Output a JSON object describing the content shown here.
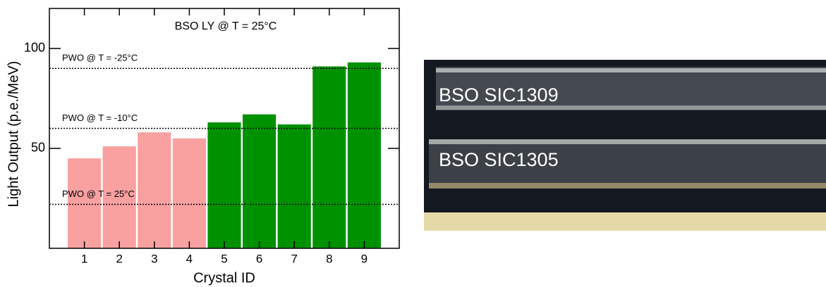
{
  "chart_data": {
    "type": "bar",
    "title": "BSO LY @ T = 25°C",
    "x_label": "Crystal ID",
    "y_label": "Light Output (p.e./MeV)",
    "x": [
      1,
      2,
      3,
      4,
      5,
      6,
      7,
      8,
      9
    ],
    "values": [
      45,
      51,
      58,
      55,
      63,
      67,
      62,
      91,
      93
    ],
    "colors": [
      "#f9a0a0",
      "#f9a0a0",
      "#f9a0a0",
      "#f9a0a0",
      "#009100",
      "#009100",
      "#009100",
      "#009100",
      "#009100"
    ],
    "xlim": [
      0,
      10
    ],
    "xticks": [
      1,
      2,
      3,
      4,
      5,
      6,
      7,
      8,
      9
    ],
    "ylim": [
      0,
      120
    ],
    "yticks": [
      50,
      100
    ],
    "reference_lines": [
      {
        "label": "PWO @ T = -25°C",
        "value": 90
      },
      {
        "label": "PWO @ T = -10°C",
        "value": 60
      },
      {
        "label": "PWO @ T = 25°C",
        "value": 22
      }
    ]
  },
  "photo": {
    "labels": [
      "BSO SIC1309",
      "BSO SIC1305"
    ]
  }
}
